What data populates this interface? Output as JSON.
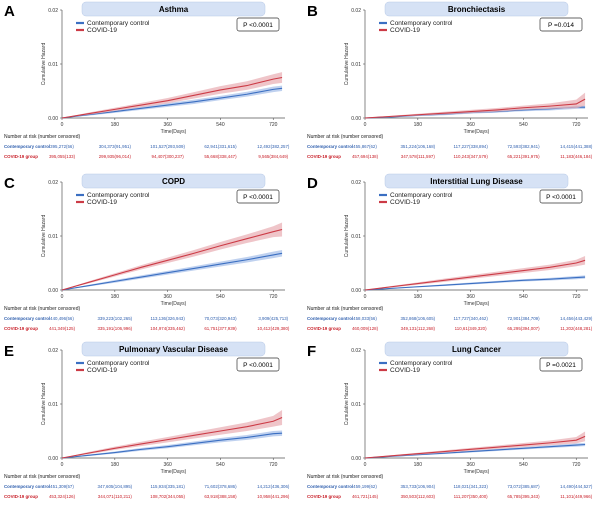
{
  "colors": {
    "control": "#3b6fc2",
    "control_band": "#a9c2ea",
    "covid": "#cc3b46",
    "covid_band": "#eab2b7",
    "title_bg": "#d6e2f5"
  },
  "chart_data": [
    {
      "type": "line",
      "letter": "A",
      "title": "Asthma",
      "p_text": "P <0.0001",
      "xlabel": "Time(Days)",
      "ylabel": "Cumulative Hazard",
      "xlim": [
        0,
        760
      ],
      "ylim": [
        0,
        0.02
      ],
      "xticks": [
        "0",
        "180",
        "360",
        "540",
        "720"
      ],
      "yticks": [
        "0.00",
        "0.01",
        "0.02"
      ],
      "legend": [
        "Contemporary control",
        "COVID-19"
      ],
      "legend_position": "top-left",
      "series": [
        {
          "name": "Contemporary control",
          "x": [
            0,
            90,
            180,
            270,
            360,
            450,
            540,
            630,
            720,
            750
          ],
          "y": [
            0,
            0.0006,
            0.0012,
            0.0018,
            0.0024,
            0.003,
            0.0037,
            0.0044,
            0.0053,
            0.0055
          ],
          "band": [
            0,
            0.00015,
            0.00025,
            0.0003,
            0.00035,
            0.0004,
            0.0004,
            0.00045,
            0.0005,
            0.0005
          ]
        },
        {
          "name": "COVID-19",
          "x": [
            0,
            90,
            180,
            270,
            360,
            450,
            540,
            630,
            720,
            750
          ],
          "y": [
            0,
            0.0008,
            0.0016,
            0.0024,
            0.0032,
            0.0042,
            0.0052,
            0.006,
            0.0072,
            0.0075
          ],
          "band": [
            0,
            0.0002,
            0.0003,
            0.0004,
            0.0005,
            0.0006,
            0.0007,
            0.0008,
            0.0009,
            0.001
          ]
        }
      ],
      "risk_header": "Number at risk (number censored)",
      "risk_rows": [
        {
          "label": "Contemporary control",
          "values": [
            "395,272(56)",
            "304,373(91,951)",
            "101,527(293,509)",
            "62,941(331,615)",
            "12,492(382,257)"
          ]
        },
        {
          "label": "COVID-19 group",
          "values": [
            "395,055(133)",
            "299,935(96,014)",
            "94,407(300,237)",
            "55,668(338,447)",
            "9,565(384,649)"
          ]
        }
      ]
    },
    {
      "type": "line",
      "letter": "B",
      "title": "Bronchiectasis",
      "p_text": "P =0.014",
      "xlabel": "Time(Days)",
      "ylabel": "Cumulative Hazard",
      "xlim": [
        0,
        760
      ],
      "ylim": [
        0,
        0.02
      ],
      "xticks": [
        "0",
        "180",
        "360",
        "540",
        "720"
      ],
      "yticks": [
        "0.00",
        "0.01",
        "0.02"
      ],
      "legend": [
        "Contemporary control",
        "COVID-19"
      ],
      "legend_position": "top-left",
      "series": [
        {
          "name": "Contemporary control",
          "x": [
            0,
            90,
            180,
            270,
            360,
            450,
            540,
            630,
            720,
            750
          ],
          "y": [
            0,
            0.0002,
            0.0005,
            0.0007,
            0.001,
            0.0012,
            0.0015,
            0.0017,
            0.002,
            0.002
          ],
          "band": [
            0,
            0.0001,
            0.00015,
            0.0002,
            0.0002,
            0.0002,
            0.00025,
            0.0003,
            0.0003,
            0.0003
          ]
        },
        {
          "name": "COVID-19",
          "x": [
            0,
            90,
            180,
            270,
            360,
            450,
            540,
            630,
            720,
            750
          ],
          "y": [
            0,
            0.0003,
            0.0006,
            0.0009,
            0.0012,
            0.0015,
            0.0019,
            0.0022,
            0.0026,
            0.0035
          ],
          "band": [
            0,
            0.00012,
            0.00018,
            0.00025,
            0.0003,
            0.00035,
            0.0004,
            0.0005,
            0.0008,
            0.0012
          ]
        }
      ],
      "risk_header": "Number at risk (number censored)",
      "risk_rows": [
        {
          "label": "Contemporary control",
          "values": [
            "455,867(62)",
            "351,224(106,168)",
            "117,227(338,894)",
            "72,593(382,941)",
            "14,415(441,388)"
          ]
        },
        {
          "label": "COVID-19 group",
          "values": [
            "457,694(138)",
            "347,578(111,597)",
            "110,243(347,579)",
            "65,221(391,975)",
            "11,183(446,184)"
          ]
        }
      ]
    },
    {
      "type": "line",
      "letter": "C",
      "title": "COPD",
      "p_text": "P <0.0001",
      "xlabel": "Time(Days)",
      "ylabel": "Cumulative Hazard",
      "xlim": [
        0,
        760
      ],
      "ylim": [
        0,
        0.02
      ],
      "xticks": [
        "0",
        "180",
        "360",
        "540",
        "720"
      ],
      "yticks": [
        "0.00",
        "0.01",
        "0.02"
      ],
      "legend": [
        "Contemporary control",
        "COVID-19"
      ],
      "legend_position": "top-left",
      "series": [
        {
          "name": "Contemporary control",
          "x": [
            0,
            90,
            180,
            270,
            360,
            450,
            540,
            630,
            720,
            750
          ],
          "y": [
            0,
            0.0008,
            0.0016,
            0.0024,
            0.0032,
            0.004,
            0.0048,
            0.0056,
            0.0065,
            0.0068
          ],
          "band": [
            0,
            0.00015,
            0.00025,
            0.0003,
            0.00035,
            0.0004,
            0.00045,
            0.0005,
            0.0006,
            0.0006
          ]
        },
        {
          "name": "COVID-19",
          "x": [
            0,
            90,
            180,
            270,
            360,
            450,
            540,
            630,
            720,
            750
          ],
          "y": [
            0,
            0.0014,
            0.0028,
            0.0042,
            0.0055,
            0.0068,
            0.0082,
            0.0095,
            0.0108,
            0.0112
          ],
          "band": [
            0,
            0.0002,
            0.0003,
            0.0004,
            0.0005,
            0.0006,
            0.0007,
            0.0008,
            0.001,
            0.0013
          ]
        }
      ],
      "risk_header": "Number at risk (number censored)",
      "risk_rows": [
        {
          "label": "Contemporary control",
          "values": [
            "440,496(56)",
            "339,223(102,265)",
            "113,136(326,943)",
            "70,073(320,943)",
            "3,909(425,713)"
          ]
        },
        {
          "label": "COVID-19 group",
          "values": [
            "441,349(125)",
            "335,191(106,996)",
            "104,974(335,462)",
            "61,751(377,939)",
            "10,412(429,380)"
          ]
        }
      ]
    },
    {
      "type": "line",
      "letter": "D",
      "title": "Interstitial Lung Disease",
      "p_text": "P <0.0001",
      "xlabel": "Time(Days)",
      "ylabel": "Cumulative Hazard",
      "xlim": [
        0,
        760
      ],
      "ylim": [
        0,
        0.02
      ],
      "xticks": [
        "0",
        "180",
        "360",
        "540",
        "720"
      ],
      "yticks": [
        "0.00",
        "0.01",
        "0.02"
      ],
      "legend": [
        "Contemporary control",
        "COVID-19"
      ],
      "legend_position": "top-left",
      "series": [
        {
          "name": "Contemporary control",
          "x": [
            0,
            90,
            180,
            270,
            360,
            450,
            540,
            630,
            720,
            750
          ],
          "y": [
            0,
            0.0003,
            0.0006,
            0.0009,
            0.0012,
            0.0015,
            0.0018,
            0.002,
            0.0023,
            0.0024
          ],
          "band": [
            0,
            0.0001,
            0.00012,
            0.00015,
            0.00018,
            0.0002,
            0.00022,
            0.00025,
            0.0003,
            0.0003
          ]
        },
        {
          "name": "COVID-19",
          "x": [
            0,
            90,
            180,
            270,
            360,
            450,
            540,
            630,
            720,
            750
          ],
          "y": [
            0,
            0.0006,
            0.0012,
            0.0018,
            0.0024,
            0.003,
            0.0036,
            0.0042,
            0.005,
            0.0055
          ],
          "band": [
            0,
            0.00015,
            0.00022,
            0.0003,
            0.00035,
            0.0004,
            0.00045,
            0.0005,
            0.0006,
            0.0008
          ]
        }
      ],
      "risk_header": "Number at risk (number censored)",
      "risk_rows": [
        {
          "label": "Contemporary control",
          "values": [
            "458,033(56)",
            "352,868(106,605)",
            "117,727(340,462)",
            "72,901(384,709)",
            "14,456(443,429)"
          ]
        },
        {
          "label": "COVID-19 group",
          "values": [
            "460,009(128)",
            "349,131(112,268)",
            "110,61(349,320)",
            "65,295(394,007)",
            "11,202(448,281)"
          ]
        }
      ]
    },
    {
      "type": "line",
      "letter": "E",
      "title": "Pulmonary Vascular Disease",
      "p_text": "P <0.0001",
      "xlabel": "Time(Days)",
      "ylabel": "Cumulative Hazard",
      "xlim": [
        0,
        760
      ],
      "ylim": [
        0,
        0.02
      ],
      "xticks": [
        "0",
        "180",
        "360",
        "540",
        "720"
      ],
      "yticks": [
        "0.00",
        "0.01",
        "0.02"
      ],
      "legend": [
        "Contemporary control",
        "COVID-19"
      ],
      "legend_position": "top-left",
      "series": [
        {
          "name": "Contemporary control",
          "x": [
            0,
            90,
            180,
            270,
            360,
            450,
            540,
            630,
            720,
            750
          ],
          "y": [
            0,
            0.0005,
            0.001,
            0.0016,
            0.0021,
            0.0027,
            0.0033,
            0.0038,
            0.0045,
            0.0046
          ],
          "band": [
            0,
            0.00012,
            0.0002,
            0.00025,
            0.0003,
            0.00035,
            0.0004,
            0.00045,
            0.0005,
            0.0005
          ]
        },
        {
          "name": "COVID-19",
          "x": [
            0,
            90,
            180,
            270,
            360,
            450,
            540,
            630,
            720,
            750
          ],
          "y": [
            0,
            0.0009,
            0.0018,
            0.0026,
            0.0034,
            0.0042,
            0.005,
            0.0058,
            0.0068,
            0.0075
          ],
          "band": [
            0,
            0.0002,
            0.0003,
            0.0004,
            0.0005,
            0.0006,
            0.0007,
            0.0008,
            0.001,
            0.0014
          ]
        }
      ],
      "risk_header": "Number at risk (number censored)",
      "risk_rows": [
        {
          "label": "Contemporary control",
          "values": [
            "451,309(57)",
            "347,605(104,895)",
            "115,934(335,181)",
            "71,602(378,686)",
            "14,212(436,306)"
          ]
        },
        {
          "label": "COVID-19 group",
          "values": [
            "453,324(126)",
            "344,071(110,211)",
            "108,702(344,055)",
            "63,918(388,158)",
            "10,958(441,296)"
          ]
        }
      ]
    },
    {
      "type": "line",
      "letter": "F",
      "title": "Lung Cancer",
      "p_text": "P =0.0021",
      "xlabel": "Time(Days)",
      "ylabel": "Cumulative Hazard",
      "xlim": [
        0,
        760
      ],
      "ylim": [
        0,
        0.02
      ],
      "xticks": [
        "0",
        "180",
        "360",
        "540",
        "720"
      ],
      "yticks": [
        "0.00",
        "0.01",
        "0.02"
      ],
      "legend": [
        "Contemporary control",
        "COVID-19"
      ],
      "legend_position": "top-left",
      "series": [
        {
          "name": "Contemporary control",
          "x": [
            0,
            90,
            180,
            270,
            360,
            450,
            540,
            630,
            720,
            750
          ],
          "y": [
            0,
            0.0003,
            0.0006,
            0.0009,
            0.0012,
            0.0015,
            0.0018,
            0.0021,
            0.0024,
            0.0025
          ],
          "band": [
            0,
            0.0001,
            0.00012,
            0.00015,
            0.00018,
            0.0002,
            0.00022,
            0.00025,
            0.0003,
            0.0003
          ]
        },
        {
          "name": "COVID-19",
          "x": [
            0,
            90,
            180,
            270,
            360,
            450,
            540,
            630,
            720,
            750
          ],
          "y": [
            0,
            0.0004,
            0.0008,
            0.0012,
            0.0016,
            0.002,
            0.0024,
            0.0028,
            0.0033,
            0.004
          ],
          "band": [
            0,
            0.00012,
            0.00018,
            0.00022,
            0.00028,
            0.00032,
            0.00038,
            0.00045,
            0.0006,
            0.0009
          ]
        }
      ],
      "risk_header": "Number at risk (number censored)",
      "risk_rows": [
        {
          "label": "Contemporary control",
          "values": [
            "459,199(62)",
            "353,733(106,904)",
            "118,021(341,323)",
            "73,072(385,687)",
            "14,490(444,527)"
          ]
        },
        {
          "label": "COVID-19 group",
          "values": [
            "461,721(145)",
            "350,503(112,603)",
            "111,207(350,400)",
            "65,785(395,343)",
            "11,101(449,966)"
          ]
        }
      ]
    }
  ]
}
